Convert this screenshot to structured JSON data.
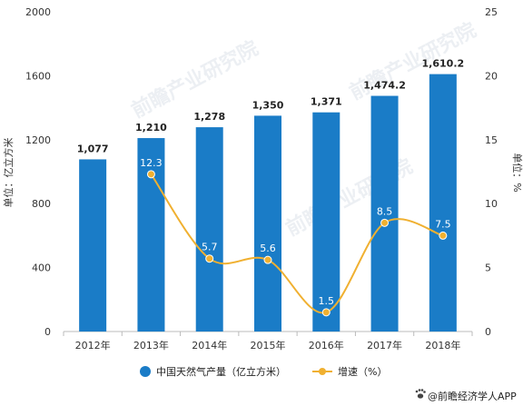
{
  "chart_data": {
    "type": "bar",
    "categories": [
      "2012年",
      "2013年",
      "2014年",
      "2015年",
      "2016年",
      "2017年",
      "2018年"
    ],
    "series": [
      {
        "name": "中国天然气产量（亿立方米）",
        "type": "bar",
        "axis": "left",
        "values": [
          1077,
          1210,
          1278,
          1350,
          1371,
          1474.2,
          1610.2
        ],
        "labels": [
          "1,077",
          "1,210",
          "1,278",
          "1,350",
          "1,371",
          "1,474.2",
          "1,610.2"
        ]
      },
      {
        "name": "增速（%）",
        "type": "line",
        "axis": "right",
        "values": [
          null,
          12.3,
          5.7,
          5.6,
          1.5,
          8.5,
          7.5
        ],
        "labels": [
          "",
          "12.3",
          "5.7",
          "5.6",
          "1.5",
          "8.5",
          "7.5"
        ]
      }
    ],
    "ylabel": "单位：亿立方米",
    "y2label": "单位：%",
    "ylim": [
      0,
      2000
    ],
    "y2lim": [
      0,
      25
    ],
    "yticks": [
      "0",
      "400",
      "800",
      "1200",
      "1600",
      "2000"
    ],
    "y2ticks": [
      "0",
      "5",
      "10",
      "15",
      "20",
      "25"
    ],
    "legend_position": "bottom"
  },
  "colors": {
    "bar": "#1a7cc7",
    "line": "#f0b030",
    "text": "#333333",
    "axis": "#bbbbbb"
  },
  "watermark": "前瞻产业研究院",
  "credit": {
    "icon": "paw-icon",
    "text": "@前瞻经济学人APP"
  }
}
